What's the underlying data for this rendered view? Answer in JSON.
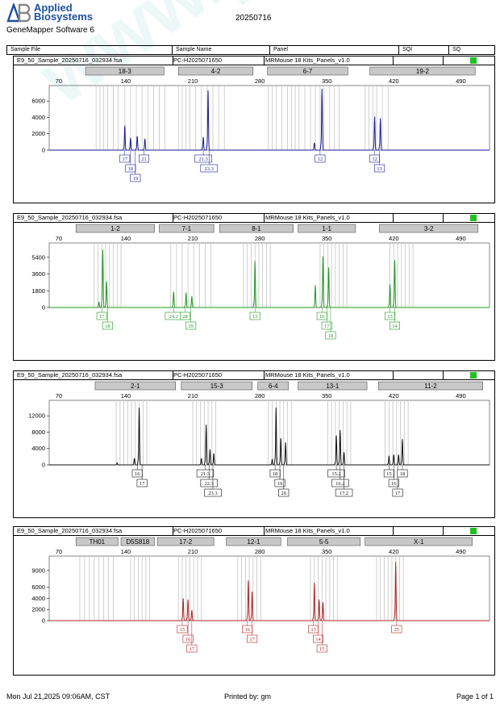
{
  "header": {
    "brand_line1": "Applied",
    "brand_line2": "Biosystems",
    "software": "GeneMapper Software 6",
    "run_date": "20250716"
  },
  "table_header": {
    "sample_file": "Sample File",
    "sample_name": "Sample Name",
    "panel": "Panel",
    "sqi": "SQI",
    "sq": "SQ"
  },
  "watermark": "www.procell.com.cn",
  "footer": {
    "date": "Mon Jul 21,2025 09:06AM, CST",
    "printed_by": "Printed by: gm",
    "page": "Page 1 of 1"
  },
  "chart_data": [
    {
      "type": "line",
      "sample_file": "E9_50_Sample_20250716_032934.fsa",
      "sample_name": "PC-H2025071650",
      "panel": "MRMouse 18 Kits_Panels_v1.0",
      "sq_color": "#22c022",
      "color": "#1a1a9a",
      "xticks": [
        70,
        140,
        210,
        280,
        350,
        420,
        490
      ],
      "yticks": [
        0,
        2000,
        4000,
        6000
      ],
      "xlim": [
        60,
        520
      ],
      "ylim": [
        0,
        7500
      ],
      "markers": [
        {
          "label": "18-3",
          "x0": 98,
          "x1": 180
        },
        {
          "label": "4-2",
          "x0": 195,
          "x1": 273
        },
        {
          "label": "6-7",
          "x0": 288,
          "x1": 372
        },
        {
          "label": "19-2",
          "x0": 395,
          "x1": 505
        }
      ],
      "bins": [
        109,
        113,
        117,
        121,
        127,
        132,
        139,
        145,
        151,
        157,
        163,
        169,
        175,
        181,
        195,
        199,
        203,
        207,
        213,
        219,
        225,
        231,
        237,
        243,
        289,
        293,
        297,
        303,
        309,
        313,
        317,
        321,
        327,
        333,
        338,
        343,
        347,
        353,
        358,
        363,
        390,
        394,
        398,
        402,
        408,
        414
      ],
      "peaks": [
        {
          "x": 139,
          "h": 3000
        },
        {
          "x": 145,
          "h": 1500
        },
        {
          "x": 152,
          "h": 1700
        },
        {
          "x": 160,
          "h": 1400
        },
        {
          "x": 221,
          "h": 1600
        },
        {
          "x": 226,
          "h": 7300
        },
        {
          "x": 337,
          "h": 900
        },
        {
          "x": 345,
          "h": 7600
        },
        {
          "x": 400,
          "h": 4100
        },
        {
          "x": 406,
          "h": 3900
        }
      ],
      "alleles": [
        {
          "label": "17",
          "x": 139,
          "row": 0
        },
        {
          "label": "18",
          "x": 145,
          "row": 1
        },
        {
          "label": "19",
          "x": 150,
          "row": 2
        },
        {
          "label": "21",
          "x": 159,
          "row": 0
        },
        {
          "label": "21.3",
          "x": 221,
          "row": 0
        },
        {
          "label": "23.3",
          "x": 227,
          "row": 1
        },
        {
          "label": "12",
          "x": 343,
          "row": 0
        },
        {
          "label": "12",
          "x": 400,
          "row": 0
        },
        {
          "label": "13",
          "x": 405,
          "row": 1
        }
      ]
    },
    {
      "type": "line",
      "sample_file": "E9_50_Sample_20250716_032934.fsa",
      "sample_name": "PC-H2025071650",
      "panel": "MRMouse 18 Kits_Panels_v1.0",
      "sq_color": "#22c022",
      "color": "#1f9a1f",
      "xticks": [
        70,
        140,
        210,
        280,
        350,
        420,
        490
      ],
      "yticks": [
        0,
        1800,
        3600,
        5400
      ],
      "xlim": [
        60,
        520
      ],
      "ylim": [
        0,
        6600
      ],
      "markers": [
        {
          "label": "1-2",
          "x0": 88,
          "x1": 170
        },
        {
          "label": "7-1",
          "x0": 175,
          "x1": 232
        },
        {
          "label": "8-1",
          "x0": 238,
          "x1": 315
        },
        {
          "label": "1-1",
          "x0": 320,
          "x1": 380
        },
        {
          "label": "3-2",
          "x0": 405,
          "x1": 508
        }
      ],
      "bins": [
        107,
        111,
        115,
        119,
        123,
        127,
        131,
        135,
        187,
        193,
        199,
        205,
        211,
        217,
        223,
        229,
        263,
        267,
        271,
        275,
        279,
        283,
        287,
        291,
        343,
        347,
        351,
        355,
        359,
        363,
        367,
        371,
        416,
        420,
        424,
        428,
        432,
        436,
        440
      ],
      "peaks": [
        {
          "x": 112,
          "h": 600
        },
        {
          "x": 116,
          "h": 6200
        },
        {
          "x": 120,
          "h": 2800
        },
        {
          "x": 190,
          "h": 1700
        },
        {
          "x": 203,
          "h": 1600
        },
        {
          "x": 209,
          "h": 1200
        },
        {
          "x": 275,
          "h": 5000
        },
        {
          "x": 338,
          "h": 2400
        },
        {
          "x": 346,
          "h": 5500
        },
        {
          "x": 352,
          "h": 4300
        },
        {
          "x": 416,
          "h": 2500
        },
        {
          "x": 421,
          "h": 5100
        }
      ],
      "alleles": [
        {
          "label": "17",
          "x": 115,
          "row": 0
        },
        {
          "label": "18",
          "x": 121,
          "row": 1
        },
        {
          "label": "24.2",
          "x": 190,
          "row": 0
        },
        {
          "label": "28",
          "x": 202,
          "row": 0
        },
        {
          "label": "29",
          "x": 208,
          "row": 1
        },
        {
          "label": "13",
          "x": 275,
          "row": 0
        },
        {
          "label": "16",
          "x": 345,
          "row": 0
        },
        {
          "label": "17",
          "x": 350,
          "row": 1
        },
        {
          "label": "18",
          "x": 354,
          "row": 2
        },
        {
          "label": "13",
          "x": 416,
          "row": 0
        },
        {
          "label": "14",
          "x": 421,
          "row": 1
        }
      ]
    },
    {
      "type": "line",
      "sample_file": "E9_50_Sample_20250716_032934.fsa",
      "sample_name": "PC-H2025071650",
      "panel": "MRMouse 18 Kits_Panels_v1.0",
      "sq_color": "#22c022",
      "color": "#111111",
      "xticks": [
        70,
        140,
        210,
        280,
        350,
        420,
        490
      ],
      "yticks": [
        0,
        4000,
        8000,
        12000
      ],
      "xlim": [
        60,
        520
      ],
      "ylim": [
        0,
        15000
      ],
      "markers": [
        {
          "label": "2-1",
          "x0": 108,
          "x1": 192
        },
        {
          "label": "15-3",
          "x0": 198,
          "x1": 272
        },
        {
          "label": "6-4",
          "x0": 278,
          "x1": 310
        },
        {
          "label": "13-1",
          "x0": 320,
          "x1": 392
        },
        {
          "label": "11-2",
          "x0": 404,
          "x1": 513
        }
      ],
      "bins": [
        130,
        134,
        138,
        142,
        146,
        150,
        154,
        158,
        162,
        210,
        214,
        218,
        222,
        226,
        230,
        234,
        289,
        293,
        297,
        301,
        305,
        309,
        313,
        351,
        355,
        359,
        363,
        367,
        371,
        375,
        411,
        415,
        419,
        423,
        427,
        431,
        435
      ],
      "peaks": [
        {
          "x": 131,
          "h": 500
        },
        {
          "x": 149,
          "h": 1600
        },
        {
          "x": 154,
          "h": 14000
        },
        {
          "x": 219,
          "h": 1600
        },
        {
          "x": 224,
          "h": 9800
        },
        {
          "x": 228,
          "h": 3800
        },
        {
          "x": 232,
          "h": 2800
        },
        {
          "x": 293,
          "h": 1400
        },
        {
          "x": 297,
          "h": 14000
        },
        {
          "x": 302,
          "h": 6500
        },
        {
          "x": 307,
          "h": 5500
        },
        {
          "x": 360,
          "h": 7200
        },
        {
          "x": 364,
          "h": 8500
        },
        {
          "x": 368,
          "h": 3100
        },
        {
          "x": 415,
          "h": 2200
        },
        {
          "x": 420,
          "h": 2500
        },
        {
          "x": 425,
          "h": 2500
        },
        {
          "x": 429,
          "h": 6300
        }
      ],
      "alleles": [
        {
          "label": "16",
          "x": 152,
          "row": 0
        },
        {
          "label": "17",
          "x": 157,
          "row": 1
        },
        {
          "label": "21.3",
          "x": 223,
          "row": 0
        },
        {
          "label": "22.3",
          "x": 227,
          "row": 1
        },
        {
          "label": "23.3",
          "x": 231,
          "row": 2
        },
        {
          "label": "18",
          "x": 296,
          "row": 0
        },
        {
          "label": "19",
          "x": 301,
          "row": 1
        },
        {
          "label": "20",
          "x": 305,
          "row": 2
        },
        {
          "label": "15.2",
          "x": 360,
          "row": 0
        },
        {
          "label": "16.2",
          "x": 364,
          "row": 1
        },
        {
          "label": "17.2",
          "x": 368,
          "row": 2
        },
        {
          "label": "15",
          "x": 415,
          "row": 0
        },
        {
          "label": "16",
          "x": 420,
          "row": 1
        },
        {
          "label": "17",
          "x": 424,
          "row": 2
        },
        {
          "label": "18",
          "x": 429,
          "row": 0
        }
      ]
    },
    {
      "type": "line",
      "sample_file": "E9_50_Sample_20250716_032934.fsa",
      "sample_name": "PC-H2025071650",
      "panel": "MRMouse 18 Kits_Panels_v1.0",
      "sq_color": "#22c022",
      "color": "#b22222",
      "xticks": [
        70,
        140,
        210,
        280,
        350,
        420,
        490
      ],
      "yticks": [
        0,
        2000,
        4000,
        6000,
        9000
      ],
      "xlim": [
        60,
        520
      ],
      "ylim": [
        0,
        11000
      ],
      "markers": [
        {
          "label": "TH01",
          "x0": 88,
          "x1": 132
        },
        {
          "label": "D5S818",
          "x0": 135,
          "x1": 170
        },
        {
          "label": "17-2",
          "x0": 173,
          "x1": 232
        },
        {
          "label": "12-1",
          "x0": 245,
          "x1": 302
        },
        {
          "label": "5-5",
          "x0": 309,
          "x1": 385
        },
        {
          "label": "X-1",
          "x0": 390,
          "x1": 502
        }
      ],
      "bins": [
        92,
        97,
        102,
        107,
        112,
        117,
        122,
        127,
        145,
        149,
        153,
        157,
        161,
        165,
        195,
        199,
        203,
        207,
        211,
        215,
        219,
        257,
        261,
        265,
        269,
        273,
        277,
        281,
        333,
        337,
        341,
        345,
        349,
        353,
        357,
        361,
        402,
        406,
        410,
        414,
        418,
        422,
        426,
        430
      ],
      "peaks": [
        {
          "x": 200,
          "h": 4000
        },
        {
          "x": 205,
          "h": 3800
        },
        {
          "x": 209,
          "h": 1900
        },
        {
          "x": 268,
          "h": 7200
        },
        {
          "x": 272,
          "h": 5200
        },
        {
          "x": 337,
          "h": 6800
        },
        {
          "x": 342,
          "h": 3800
        },
        {
          "x": 346,
          "h": 3300
        },
        {
          "x": 422,
          "h": 10500
        }
      ],
      "alleles": [
        {
          "label": "15",
          "x": 199,
          "row": 0
        },
        {
          "label": "16",
          "x": 205,
          "row": 1
        },
        {
          "label": "17",
          "x": 209,
          "row": 2
        },
        {
          "label": "16",
          "x": 267,
          "row": 0
        },
        {
          "label": "17",
          "x": 272,
          "row": 1
        },
        {
          "label": "13",
          "x": 336,
          "row": 0
        },
        {
          "label": "14",
          "x": 341,
          "row": 1
        },
        {
          "label": "15",
          "x": 345,
          "row": 2
        },
        {
          "label": "25",
          "x": 423,
          "row": 0
        }
      ]
    }
  ]
}
